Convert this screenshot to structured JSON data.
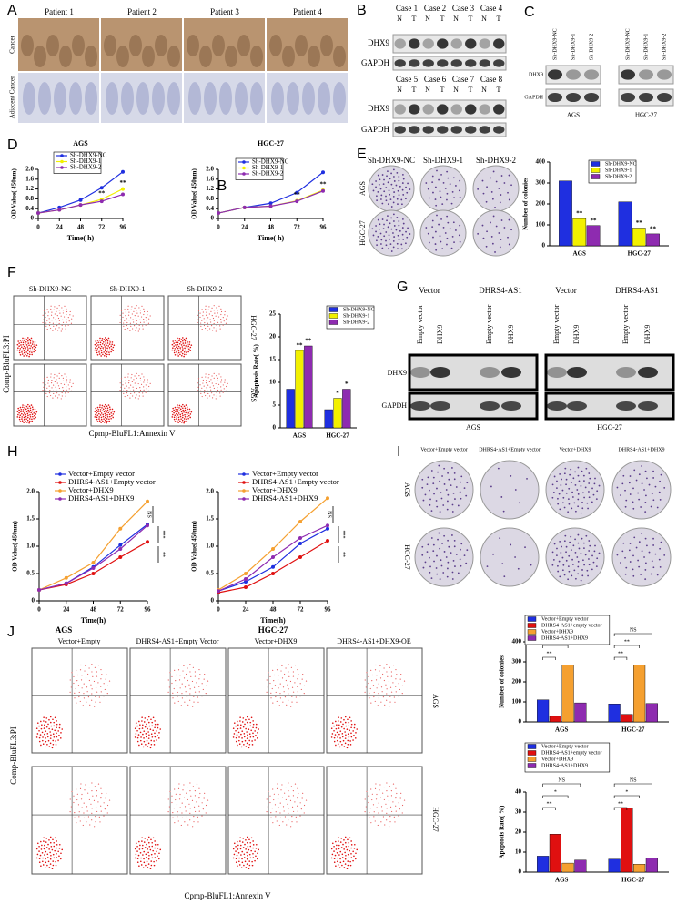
{
  "figure": {
    "labels": [
      "A",
      "B",
      "C",
      "D",
      "E",
      "F",
      "G",
      "H",
      "I",
      "J"
    ],
    "A": {
      "patients": [
        "Patient 1",
        "Patient 2",
        "Patient 3",
        "Patient 4"
      ],
      "rows": [
        "Cancer",
        "Adjacent Cancer"
      ]
    },
    "B": {
      "cases": [
        "Case 1",
        "Case 2",
        "Case 3",
        "Case 4",
        "Case 5",
        "Case 6",
        "Case 7",
        "Case 8"
      ],
      "lanes": [
        "N",
        "T"
      ],
      "proteins": [
        "DHX9",
        "GAPDH"
      ]
    },
    "C": {
      "lanes": [
        "Sh-DHX9-NC",
        "Sh-DHX9-1",
        "Sh-DHX9-2"
      ],
      "proteins": [
        "DHX9",
        "GAPDH"
      ],
      "cells": [
        "AGS",
        "HGC-27"
      ]
    },
    "D": {
      "stray": "B"
    },
    "E": {
      "groups": [
        "Sh-DHX9-NC",
        "Sh-DHX9-1",
        "Sh-DHX9-2"
      ],
      "cells": [
        "AGS",
        "HGC-27"
      ]
    },
    "F": {
      "groups": [
        "Sh-DHX9-NC",
        "Sh-DHX9-1",
        "Sh-DHX9-2"
      ],
      "cells": [
        "HGC-27",
        "AGS"
      ],
      "y_axis": "Comp-BluFL3:PI",
      "x_axis": "Cpmp-BluFL1:Annexin V"
    },
    "G": {
      "groups": [
        "Vector",
        "DHRS4-AS1",
        "Vector",
        "DHRS4-AS1"
      ],
      "lanes": [
        "Empty vector",
        "DHX9"
      ],
      "proteins": [
        "DHX9",
        "GAPDH"
      ],
      "cells": [
        "AGS",
        "HGC-27"
      ]
    },
    "I": {
      "groups": [
        "Vector+Empty vector",
        "DHRS4-AS1+Empty vector",
        "Vector+DHX9",
        "DHRS4-AS1+DHX9"
      ],
      "cells": [
        "AGS",
        "HGC-27"
      ]
    },
    "J": {
      "cells": [
        "AGS",
        "HGC-27"
      ],
      "groups": [
        "Vector+Empty",
        "DHRS4-AS1+Empty Vector",
        "Vector+DHX9",
        "DHRS4-AS1+DHX9-OE"
      ],
      "y_axis": "Comp-BluFL3:PI",
      "x_axis": "Cpmp-BluFL1:Annexin V"
    }
  },
  "chart_data": [
    {
      "type": "line",
      "title": "AGS",
      "xlabel": "Time( h)",
      "ylabel": "OD Value( 450nm)",
      "x": [
        0,
        24,
        48,
        72,
        96
      ],
      "xlim": [
        0,
        96
      ],
      "xticks": [
        0,
        24,
        48,
        72,
        96
      ],
      "ylim": [
        0,
        2
      ],
      "yticks": [
        0,
        0.4,
        0.8,
        1.2,
        1.6,
        {
          "value": 2,
          "label": "2.0"
        }
      ],
      "series": [
        {
          "name": "Sh-DHX9-NC",
          "color": "#1f2fe0",
          "values": [
            0.22,
            0.45,
            0.75,
            1.25,
            1.9
          ]
        },
        {
          "name": "Sh-DHX9-1",
          "color": "#f2f000",
          "values": [
            0.22,
            0.35,
            0.55,
            0.78,
            1.2
          ],
          "significance": [
            null,
            null,
            null,
            "**",
            "**"
          ]
        },
        {
          "name": "Sh-DHX9-2",
          "color": "#8e2bb0",
          "values": [
            0.22,
            0.35,
            0.55,
            0.7,
            0.98
          ]
        }
      ]
    },
    {
      "type": "line",
      "title": "HGC-27",
      "xlabel": "Time( h)",
      "ylabel": "OD Value( 450nm)",
      "x": [
        0,
        24,
        48,
        72,
        96
      ],
      "xlim": [
        0,
        96
      ],
      "xticks": [
        0,
        24,
        48,
        72,
        96
      ],
      "ylim": [
        0,
        2
      ],
      "yticks": [
        0,
        0.4,
        0.8,
        1.2,
        1.6,
        {
          "value": 2,
          "label": "2.0"
        }
      ],
      "series": [
        {
          "name": "Sh-DHX9-NC",
          "color": "#1f2fe0",
          "values": [
            0.22,
            0.45,
            0.62,
            1.05,
            1.88
          ]
        },
        {
          "name": "Sh-DHX9-1",
          "color": "#f2f000",
          "values": [
            0.22,
            0.45,
            0.5,
            0.72,
            1.15
          ],
          "significance": [
            null,
            null,
            null,
            "**",
            "**"
          ]
        },
        {
          "name": "Sh-DHX9-2",
          "color": "#8e2bb0",
          "values": [
            0.22,
            0.45,
            0.5,
            0.7,
            1.12
          ]
        }
      ]
    },
    {
      "type": "bar",
      "ylabel": "Number of colonies",
      "categories": [
        "AGS",
        "HGC-27"
      ],
      "ylim": [
        0,
        400
      ],
      "yticks": [
        0,
        100,
        200,
        300,
        400
      ],
      "series": [
        {
          "name": "Sh-DHX9-NC",
          "color": "#1f2fe0",
          "values": [
            310,
            210
          ]
        },
        {
          "name": "Sh-DHX9-1",
          "color": "#f2f000",
          "values": [
            130,
            85
          ],
          "significance": [
            "**",
            "**"
          ]
        },
        {
          "name": "Sh-DHX9-2",
          "color": "#8e2bb0",
          "values": [
            97,
            57
          ],
          "significance": [
            "**",
            "**"
          ]
        }
      ]
    },
    {
      "type": "bar",
      "ylabel": "Apoptosis Rate( %)",
      "categories": [
        "AGS",
        "HGC-27"
      ],
      "ylim": [
        0,
        25
      ],
      "yticks": [
        0,
        5,
        10,
        15,
        20,
        25
      ],
      "series": [
        {
          "name": "Sh-DHX9-NC",
          "color": "#1f2fe0",
          "values": [
            8.5,
            4
          ]
        },
        {
          "name": "Sh-DHX9-1",
          "color": "#f2f000",
          "values": [
            17,
            6.5
          ],
          "significance": [
            "**",
            "*"
          ]
        },
        {
          "name": "Sh-DHX9-2",
          "color": "#8e2bb0",
          "values": [
            18,
            8.5
          ],
          "significance": [
            "**",
            "*"
          ]
        }
      ]
    },
    {
      "type": "line",
      "xlabel": "Time(h)",
      "ylabel": "OD Value( 450nm)",
      "x": [
        0,
        24,
        48,
        72,
        96
      ],
      "xlim": [
        0,
        96
      ],
      "xticks": [
        0,
        24,
        48,
        72,
        96
      ],
      "ylim": [
        0,
        2
      ],
      "yticks": [
        0,
        0.5,
        {
          "value": 1,
          "label": "1.0"
        },
        1.5,
        {
          "value": 2,
          "label": "2.0"
        }
      ],
      "annotations": [
        "NS",
        "***",
        "**"
      ],
      "series": [
        {
          "name": "Vector+Empty vector",
          "color": "#1f2fe0",
          "values": [
            0.2,
            0.32,
            0.62,
            1.02,
            1.4
          ]
        },
        {
          "name": "DHRS4-AS1+Empty vector",
          "color": "#e01010",
          "values": [
            0.2,
            0.3,
            0.5,
            0.8,
            1.08
          ]
        },
        {
          "name": "Vector+DHX9",
          "color": "#f5a030",
          "values": [
            0.2,
            0.42,
            0.7,
            1.32,
            1.82
          ]
        },
        {
          "name": "DHRS4-AS1+DHX9",
          "color": "#8e2bb0",
          "values": [
            0.2,
            0.32,
            0.6,
            0.95,
            1.38
          ]
        }
      ]
    },
    {
      "type": "line",
      "xlabel": "Time(h)",
      "ylabel": "OD Value( 450nm)",
      "x": [
        0,
        24,
        48,
        72,
        96
      ],
      "xlim": [
        0,
        96
      ],
      "xticks": [
        0,
        24,
        48,
        72,
        96
      ],
      "ylim": [
        0,
        2
      ],
      "yticks": [
        0,
        0.5,
        {
          "value": 1,
          "label": "1.0"
        },
        1.5,
        {
          "value": 2,
          "label": "2.0"
        }
      ],
      "annotations": [
        "NS",
        "***",
        "**"
      ],
      "series": [
        {
          "name": "Vector+Empty vector",
          "color": "#1f2fe0",
          "values": [
            0.18,
            0.35,
            0.62,
            1.05,
            1.32
          ]
        },
        {
          "name": "DHRS4-AS1+Empty vector",
          "color": "#e01010",
          "values": [
            0.15,
            0.25,
            0.5,
            0.8,
            1.1
          ]
        },
        {
          "name": "Vector+DHX9",
          "color": "#f5a030",
          "values": [
            0.2,
            0.5,
            0.95,
            1.45,
            1.88
          ]
        },
        {
          "name": "DHRS4-AS1+DHX9",
          "color": "#8e2bb0",
          "values": [
            0.18,
            0.4,
            0.8,
            1.15,
            1.38
          ]
        }
      ]
    },
    {
      "type": "bar",
      "ylabel": "Number of colonies",
      "categories": [
        "AGS",
        "HGC-27"
      ],
      "ylim": [
        0,
        400
      ],
      "yticks": [
        0,
        100,
        200,
        300,
        400
      ],
      "comparisons": [
        [
          "**",
          "**",
          "NS"
        ],
        [
          "**",
          "**",
          "NS"
        ]
      ],
      "series": [
        {
          "name": "Vector+Empty vector",
          "color": "#1f2fe0",
          "values": [
            110,
            90
          ]
        },
        {
          "name": "DHRS4-AS1+empty vector",
          "color": "#e01010",
          "values": [
            28,
            38
          ]
        },
        {
          "name": "Vector+DHX9",
          "color": "#f5a030",
          "values": [
            285,
            285
          ]
        },
        {
          "name": "DHRS4-AS1+DHX9",
          "color": "#8e2bb0",
          "values": [
            95,
            92
          ]
        }
      ]
    },
    {
      "type": "bar",
      "ylabel": "Apoptosis Rate( %)",
      "categories": [
        "AGS",
        "HGC-27"
      ],
      "ylim": [
        0,
        40
      ],
      "yticks": [
        0,
        10,
        20,
        30,
        40
      ],
      "comparisons": [
        [
          "**",
          "*",
          "NS"
        ],
        [
          "**",
          "*",
          "NS"
        ]
      ],
      "series": [
        {
          "name": "Vector+Empty vector",
          "color": "#1f2fe0",
          "values": [
            8,
            6.5
          ]
        },
        {
          "name": "DHRS4-AS1+empty vector",
          "color": "#e01010",
          "values": [
            19,
            32
          ]
        },
        {
          "name": "Vector+DHX9",
          "color": "#f5a030",
          "values": [
            4.5,
            4
          ]
        },
        {
          "name": "DHRS4-AS1+DHX9",
          "color": "#8e2bb0",
          "values": [
            6,
            7
          ]
        }
      ]
    }
  ]
}
